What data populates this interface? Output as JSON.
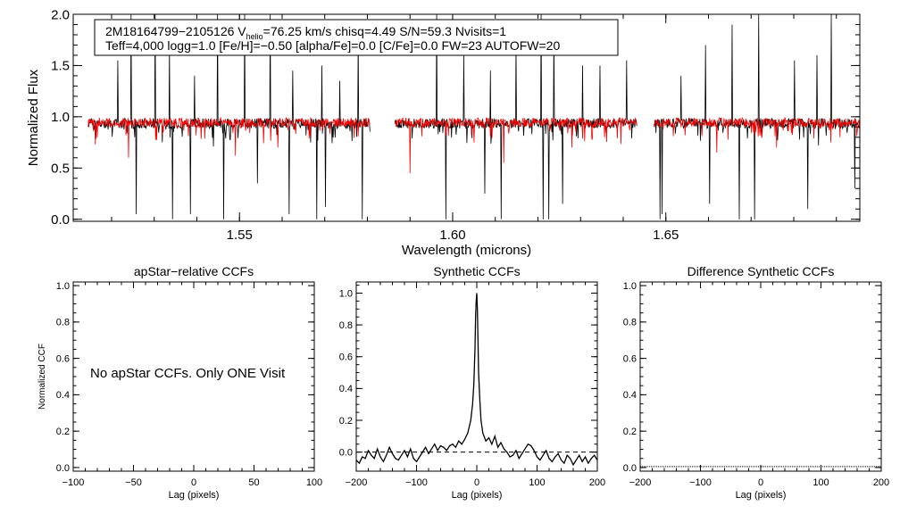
{
  "chart_data": [
    {
      "type": "line",
      "id": "spectrum",
      "title": "",
      "xlabel": "Wavelength (microns)",
      "ylabel": "Normalized Flux",
      "xlim": [
        1.511,
        1.6955
      ],
      "ylim": [
        -0.02,
        2.0
      ],
      "xticks": [
        1.55,
        1.6,
        1.65
      ],
      "xtick_labels": [
        "1.55",
        "1.60",
        "1.65"
      ],
      "yticks": [
        0.0,
        0.5,
        1.0,
        1.5,
        2.0
      ],
      "ytick_labels": [
        "0.0",
        "0.5",
        "1.0",
        "1.5",
        "2.0"
      ],
      "info_box": {
        "line1_prefix": "2M18164799−2105126  V",
        "line1_sub": "helio",
        "line1_suffix": "=76.25 km/s  chisq=4.49  S/N=59.3  Nvisits=1",
        "line2": "Teff=4,000 logg=1.0 [Fe/H]=−0.50 [alpha/Fe]=0.0 [C/Fe]=0.0 FW=23 AUTOFW=20"
      },
      "chips": [
        [
          1.5145,
          1.5806
        ],
        [
          1.5864,
          1.6432
        ],
        [
          1.6472,
          1.6954
        ]
      ],
      "series": [
        {
          "name": "observed",
          "color": "#000000",
          "continuum": 0.94,
          "noise": 0.05,
          "spikes_up": [
            [
              1.5215,
              1.55
            ],
            [
              1.5246,
              2.0
            ],
            [
              1.5302,
              2.0
            ],
            [
              1.5336,
              1.7
            ],
            [
              1.5395,
              1.4
            ],
            [
              1.5448,
              2.0
            ],
            [
              1.5512,
              2.0
            ],
            [
              1.5572,
              2.0
            ],
            [
              1.5625,
              1.45
            ],
            [
              1.5693,
              1.5
            ],
            [
              1.5735,
              1.35
            ],
            [
              1.5779,
              1.8
            ],
            [
              1.5962,
              2.0
            ],
            [
              1.6026,
              1.6
            ],
            [
              1.6088,
              1.45
            ],
            [
              1.6148,
              1.7
            ],
            [
              1.6208,
              2.0
            ],
            [
              1.6238,
              1.8
            ],
            [
              1.6305,
              1.5
            ],
            [
              1.6346,
              1.5
            ],
            [
              1.6408,
              1.55
            ],
            [
              1.6535,
              1.4
            ],
            [
              1.6593,
              1.7
            ],
            [
              1.6655,
              1.9
            ],
            [
              1.6718,
              2.0
            ],
            [
              1.6802,
              1.55
            ],
            [
              1.6855,
              1.6
            ],
            [
              1.6888,
              2.0
            ]
          ],
          "spikes_down": [
            [
              1.5258,
              0.05
            ],
            [
              1.5343,
              0.0
            ],
            [
              1.5385,
              0.05
            ],
            [
              1.5463,
              0.0
            ],
            [
              1.5542,
              0.35
            ],
            [
              1.5616,
              0.05
            ],
            [
              1.5681,
              0.0
            ],
            [
              1.5702,
              0.12
            ],
            [
              1.5788,
              0.0
            ],
            [
              1.5984,
              0.0
            ],
            [
              1.6075,
              0.25
            ],
            [
              1.6114,
              0.0
            ],
            [
              1.6212,
              0.0
            ],
            [
              1.6225,
              0.0
            ],
            [
              1.6258,
              0.15
            ],
            [
              1.6486,
              0.0
            ],
            [
              1.6491,
              0.05
            ],
            [
              1.6603,
              0.15
            ],
            [
              1.6655,
              0.0
            ],
            [
              1.6672,
              0.0
            ],
            [
              1.6708,
              0.0
            ],
            [
              1.6833,
              0.1
            ],
            [
              1.6943,
              0.3
            ]
          ]
        },
        {
          "name": "synthetic",
          "color": "#ff0000",
          "continuum": 0.95,
          "noise": 0.045,
          "spikes_up": [],
          "spikes_down": [
            [
              1.524,
              0.6
            ],
            [
              1.549,
              0.62
            ],
            [
              1.559,
              0.7
            ],
            [
              1.59,
              0.45
            ],
            [
              1.612,
              0.55
            ],
            [
              1.628,
              0.7
            ],
            [
              1.662,
              0.65
            ],
            [
              1.676,
              0.7
            ]
          ]
        }
      ]
    },
    {
      "type": "line",
      "id": "apstar-ccf",
      "title": "apStar−relative CCFs",
      "xlabel": "Lag (pixels)",
      "ylabel": "Normalized CCF",
      "xlim": [
        -100,
        100
      ],
      "ylim": [
        -0.02,
        1.02
      ],
      "xticks": [
        -100,
        -50,
        0,
        50,
        100
      ],
      "xtick_labels": [
        "−100",
        "−50",
        "0",
        "50",
        "100"
      ],
      "yticks": [
        0.0,
        0.2,
        0.4,
        0.6,
        0.8,
        1.0
      ],
      "ytick_labels": [
        "0.0",
        "0.2",
        "0.4",
        "0.6",
        "0.8",
        "1.0"
      ],
      "annotation": "No apStar CCFs.  Only ONE Visit",
      "series": []
    },
    {
      "type": "line",
      "id": "synthetic-ccf",
      "title": "Synthetic CCFs",
      "xlabel": "Lag (pixels)",
      "ylabel": "",
      "xlim": [
        -200,
        200
      ],
      "ylim": [
        -0.12,
        1.07
      ],
      "xticks": [
        -200,
        -100,
        0,
        100,
        200
      ],
      "xtick_labels": [
        "−200",
        "−100",
        "0",
        "100",
        "200"
      ],
      "yticks": [
        0.0,
        0.2,
        0.4,
        0.6,
        0.8,
        1.0
      ],
      "ytick_labels": [
        "0.0",
        "0.2",
        "0.4",
        "0.6",
        "0.8",
        "1.0"
      ],
      "reference_line": {
        "y": 0.0,
        "style": "dashed"
      },
      "series": [
        {
          "name": "ccf",
          "color": "#000000",
          "x": [
            -200,
            -195,
            -190,
            -185,
            -180,
            -175,
            -170,
            -165,
            -160,
            -155,
            -150,
            -145,
            -140,
            -135,
            -130,
            -125,
            -120,
            -115,
            -110,
            -105,
            -100,
            -95,
            -90,
            -85,
            -80,
            -75,
            -70,
            -65,
            -60,
            -55,
            -50,
            -45,
            -40,
            -35,
            -30,
            -25,
            -20,
            -15,
            -10,
            -7,
            -5,
            -3,
            -2,
            -1,
            0,
            1,
            2,
            3,
            5,
            7,
            10,
            15,
            20,
            25,
            30,
            35,
            40,
            45,
            50,
            55,
            60,
            65,
            70,
            75,
            80,
            85,
            90,
            95,
            100,
            105,
            110,
            115,
            120,
            125,
            130,
            135,
            140,
            145,
            150,
            155,
            160,
            165,
            170,
            175,
            180,
            185,
            190,
            195,
            200
          ],
          "y": [
            -0.05,
            -0.07,
            -0.03,
            -0.04,
            0.01,
            -0.02,
            -0.04,
            0.02,
            -0.03,
            -0.06,
            -0.02,
            0.03,
            -0.01,
            -0.04,
            -0.05,
            -0.02,
            0.01,
            -0.03,
            0.02,
            -0.04,
            -0.06,
            -0.03,
            0.0,
            0.03,
            -0.01,
            0.02,
            0.05,
            0.01,
            0.04,
            0.03,
            0.01,
            0.04,
            0.05,
            0.03,
            0.07,
            0.05,
            0.08,
            0.12,
            0.2,
            0.3,
            0.42,
            0.65,
            0.85,
            0.95,
            1.0,
            0.9,
            0.7,
            0.5,
            0.33,
            0.2,
            0.12,
            0.07,
            0.09,
            0.05,
            0.1,
            0.03,
            0.06,
            0.02,
            0.0,
            -0.03,
            -0.02,
            0.01,
            -0.04,
            -0.01,
            0.02,
            0.05,
            0.04,
            0.01,
            -0.03,
            -0.05,
            -0.02,
            0.01,
            -0.04,
            -0.06,
            -0.03,
            -0.01,
            -0.05,
            -0.07,
            -0.02,
            -0.04,
            -0.08,
            -0.05,
            -0.02,
            -0.06,
            -0.03,
            -0.07,
            -0.04,
            -0.02,
            -0.05
          ]
        }
      ]
    },
    {
      "type": "line",
      "id": "difference-ccf",
      "title": "Difference Synthetic CCFs",
      "xlabel": "Lag (pixels)",
      "ylabel": "",
      "xlim": [
        -200,
        200
      ],
      "ylim": [
        -0.02,
        1.02
      ],
      "xticks": [
        -200,
        -100,
        0,
        100,
        200
      ],
      "xtick_labels": [
        "−200",
        "−100",
        "0",
        "100",
        "200"
      ],
      "yticks": [
        0.0,
        0.2,
        0.4,
        0.6,
        0.8,
        1.0
      ],
      "ytick_labels": [
        "0.0",
        "0.2",
        "0.4",
        "0.6",
        "0.8",
        "1.0"
      ],
      "reference_line": {
        "y": 0.0,
        "style": "dotted"
      },
      "series": []
    }
  ]
}
